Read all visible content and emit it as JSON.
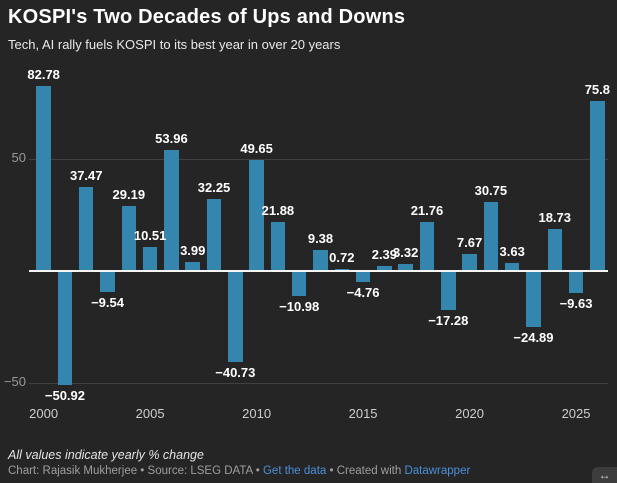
{
  "header": {
    "title": "KOSPI's Two Decades of Ups and Downs",
    "subtitle": "Tech, AI rally fuels KOSPI to its best year in over 20 years"
  },
  "chart_data": {
    "type": "bar",
    "title": "KOSPI's Two Decades of Ups and Downs",
    "subtitle": "Tech, AI rally fuels KOSPI to its best year in over 20 years",
    "categories": [
      "2000",
      "2001",
      "2002",
      "2003",
      "2004",
      "2005",
      "2006",
      "2007",
      "2008",
      "2009",
      "2010",
      "2011",
      "2012",
      "2013",
      "2014",
      "2015",
      "2016",
      "2017",
      "2018",
      "2019",
      "2020",
      "2021",
      "2022",
      "2023",
      "2024",
      "2025",
      "2026"
    ],
    "values": [
      82.78,
      -50.92,
      37.47,
      -9.54,
      29.19,
      10.51,
      53.96,
      3.99,
      32.25,
      -40.73,
      49.65,
      21.88,
      -10.98,
      9.38,
      0.72,
      -4.76,
      2.39,
      3.32,
      21.76,
      -17.28,
      7.67,
      30.75,
      3.63,
      -24.89,
      18.73,
      -9.63,
      75.8
    ],
    "value_labels_shown": true,
    "ylabel": "",
    "xlabel": "",
    "ylim": [
      -57,
      93
    ],
    "grid": "horizontal",
    "legend": "none",
    "y_gridlines": [
      {
        "value": 50,
        "label": "50"
      },
      {
        "value": -50,
        "label": "−50"
      }
    ],
    "x_ticks": [
      {
        "index": 0,
        "label": "2000"
      },
      {
        "index": 5,
        "label": "2005"
      },
      {
        "index": 10,
        "label": "2010"
      },
      {
        "index": 15,
        "label": "2015"
      },
      {
        "index": 20,
        "label": "2020"
      },
      {
        "index": 25,
        "label": "2025"
      }
    ],
    "bar_color": "#3486af",
    "background_color": "#252525",
    "zero_line_color": "#f5f5f5"
  },
  "footer": {
    "note": "All values indicate yearly % change",
    "credit_prefix": "Chart: Rajasik Mukherjee • Source: LSEG DATA • ",
    "get_data_label": "Get the data",
    "created_with": " • Created with ",
    "datawrapper_label": "Datawrapper",
    "resize_icon": "↔"
  }
}
